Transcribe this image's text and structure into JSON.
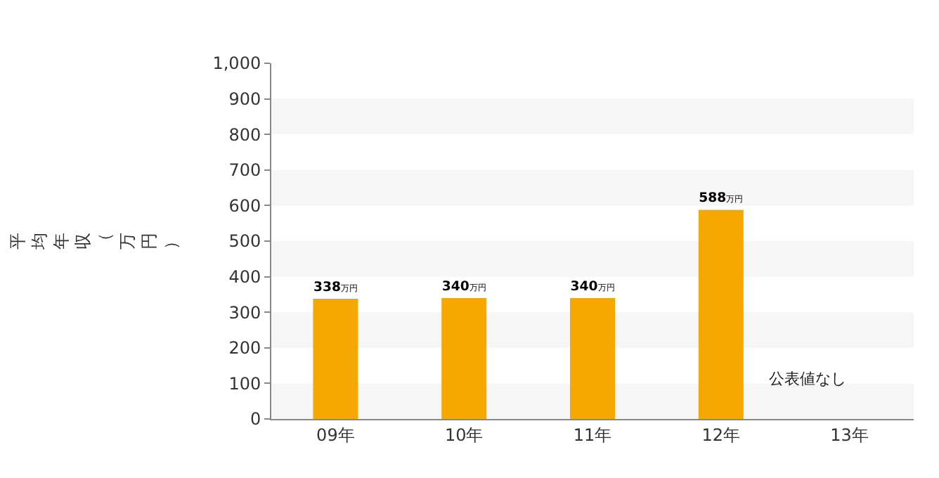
{
  "chart_data": {
    "type": "bar",
    "ylabel": "平均年収（万円）",
    "categories": [
      "09年",
      "10年",
      "11年",
      "12年",
      "13年"
    ],
    "values": [
      338,
      340,
      340,
      588,
      null
    ],
    "value_labels": [
      "338万円",
      "340万円",
      "340万円",
      "588万円",
      null
    ],
    "color": "#f5a800",
    "ylim": [
      0,
      1000
    ],
    "yticks": [
      0,
      100,
      200,
      300,
      400,
      500,
      600,
      700,
      800,
      900,
      {
        "value": 1000,
        "label": "1,000"
      }
    ],
    "annotations": [
      "公表値なし"
    ]
  }
}
